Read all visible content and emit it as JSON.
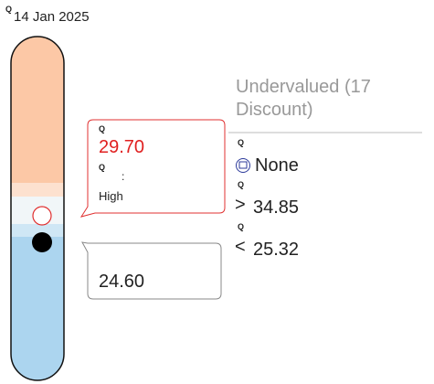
{
  "icon_glyph": "Q",
  "date": "14 Jan 2025",
  "price_high_callout": {
    "value": "29.70",
    "separator": ":",
    "label": "High"
  },
  "current_callout": {
    "value": "24.60"
  },
  "valuation": {
    "status": "Undervalued (17 Discount)",
    "dividend": "None",
    "upper": {
      "symbol": ">",
      "value": "34.85"
    },
    "lower": {
      "symbol": "<",
      "value": "25.32"
    }
  }
}
